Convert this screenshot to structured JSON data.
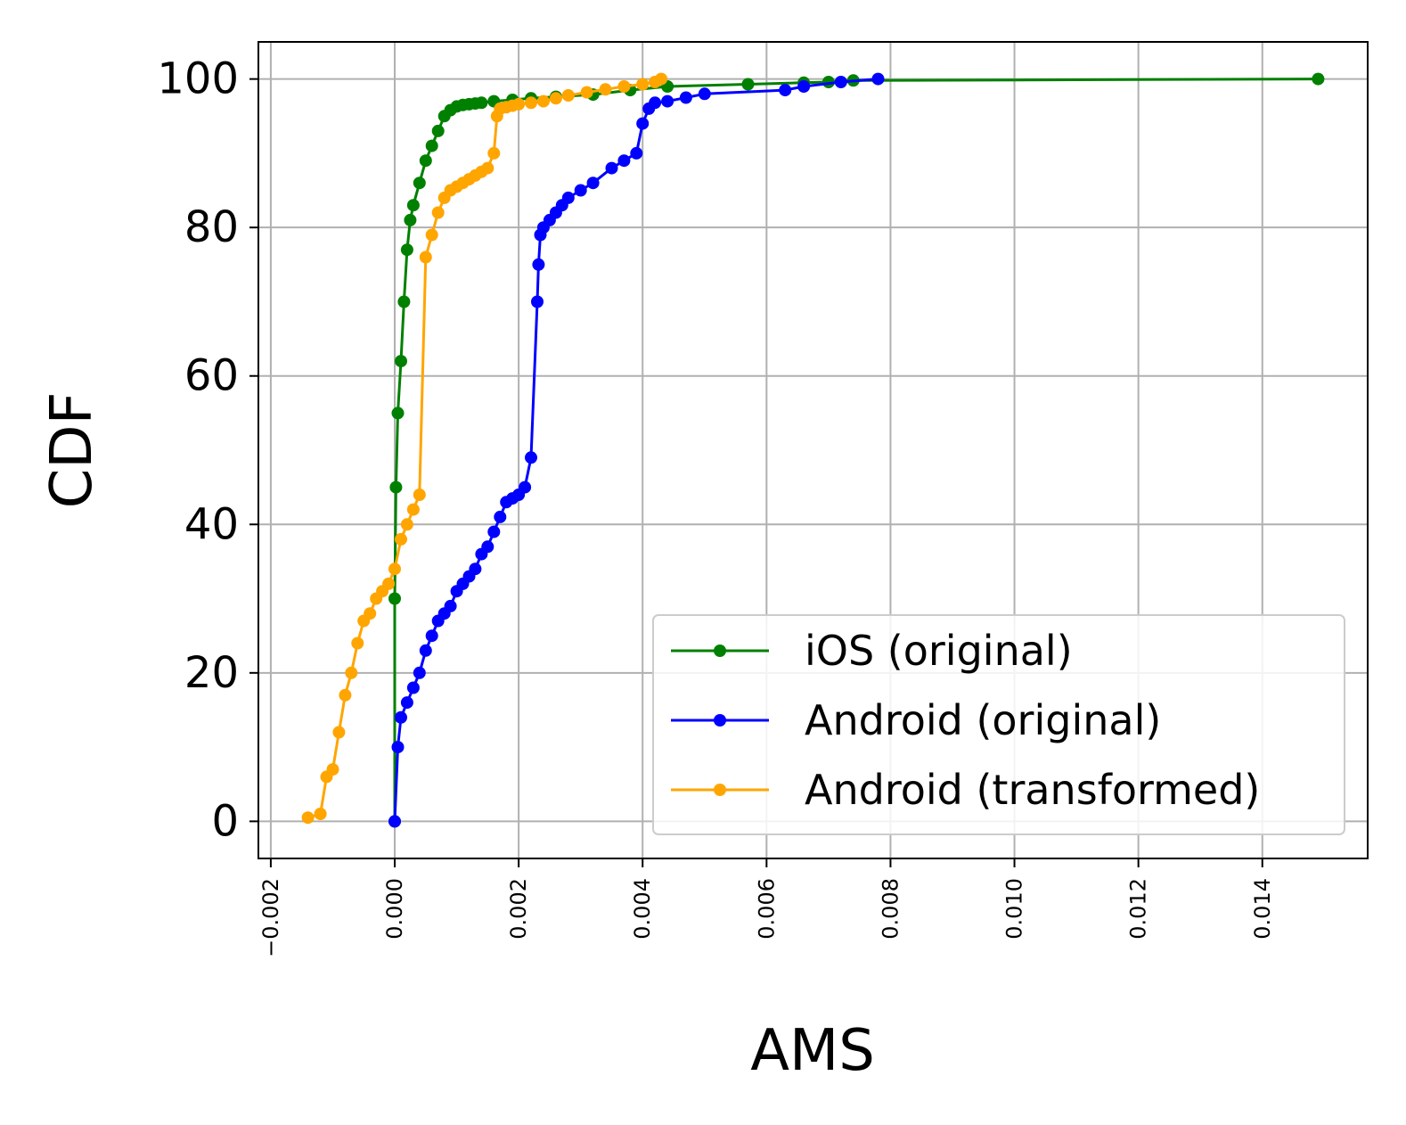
{
  "chart_data": {
    "type": "line",
    "title": "",
    "xlabel": "AMS",
    "ylabel": "CDF",
    "xlim": [
      -0.0022,
      0.0157
    ],
    "ylim": [
      -5,
      105
    ],
    "xticks": [
      -0.002,
      0.0,
      0.002,
      0.004,
      0.006,
      0.008,
      0.01,
      0.012,
      0.014
    ],
    "xtick_labels": [
      "−0.002",
      "0.000",
      "0.002",
      "0.004",
      "0.006",
      "0.008",
      "0.010",
      "0.012",
      "0.014"
    ],
    "yticks": [
      0,
      20,
      40,
      60,
      80,
      100
    ],
    "ytick_labels": [
      "0",
      "20",
      "40",
      "60",
      "80",
      "100"
    ],
    "grid": true,
    "legend_position": "lower-right",
    "series": [
      {
        "name": "iOS (original)",
        "color": "#008000",
        "x": [
          0.0,
          0.0,
          2e-05,
          5e-05,
          0.0001,
          0.00015,
          0.0002,
          0.00025,
          0.0003,
          0.0004,
          0.0005,
          0.0006,
          0.0007,
          0.0008,
          0.0009,
          0.001,
          0.0011,
          0.0012,
          0.0013,
          0.0014,
          0.0016,
          0.0019,
          0.0022,
          0.0026,
          0.0032,
          0.0038,
          0.0044,
          0.0057,
          0.0066,
          0.007,
          0.0074,
          0.0149
        ],
        "y": [
          0,
          30,
          45,
          55,
          62,
          70,
          77,
          81,
          83,
          86,
          89,
          91,
          93,
          95,
          95.8,
          96.3,
          96.5,
          96.6,
          96.7,
          96.8,
          97.0,
          97.2,
          97.4,
          97.6,
          97.9,
          98.5,
          99.0,
          99.3,
          99.5,
          99.6,
          99.8,
          100
        ]
      },
      {
        "name": "Android (original)",
        "color": "#0000ff",
        "x": [
          0.0,
          5e-05,
          0.0001,
          0.0002,
          0.0003,
          0.0004,
          0.0005,
          0.0006,
          0.0007,
          0.0008,
          0.0009,
          0.001,
          0.0011,
          0.0012,
          0.0013,
          0.0014,
          0.0015,
          0.0016,
          0.0017,
          0.0018,
          0.0019,
          0.002,
          0.0021,
          0.0022,
          0.0023,
          0.00232,
          0.00235,
          0.0024,
          0.0025,
          0.0026,
          0.0027,
          0.0028,
          0.003,
          0.0032,
          0.0035,
          0.0037,
          0.0039,
          0.004,
          0.0041,
          0.0042,
          0.0044,
          0.0047,
          0.005,
          0.0063,
          0.0066,
          0.0072,
          0.0078
        ],
        "y": [
          0,
          10,
          14,
          16,
          18,
          20,
          23,
          25,
          27,
          28,
          29,
          31,
          32,
          33,
          34,
          36,
          37,
          39,
          41,
          43,
          43.5,
          44,
          45,
          49,
          70,
          75,
          79,
          80,
          81,
          82,
          83,
          84,
          85,
          86,
          88,
          89,
          90,
          94,
          96,
          96.8,
          97,
          97.5,
          98,
          98.5,
          99,
          99.6,
          100
        ]
      },
      {
        "name": "Android (transformed)",
        "color": "#ffa500",
        "x": [
          -0.0014,
          -0.0012,
          -0.0011,
          -0.001,
          -0.0009,
          -0.0008,
          -0.0007,
          -0.0006,
          -0.0005,
          -0.0004,
          -0.0003,
          -0.0002,
          -0.0001,
          0.0,
          0.0001,
          0.0002,
          0.0003,
          0.0004,
          0.0005,
          0.0006,
          0.0007,
          0.0008,
          0.0009,
          0.001,
          0.0011,
          0.0012,
          0.0013,
          0.0014,
          0.0015,
          0.0016,
          0.00165,
          0.0017,
          0.0018,
          0.0019,
          0.002,
          0.0022,
          0.0024,
          0.0026,
          0.0028,
          0.0031,
          0.0034,
          0.0037,
          0.004,
          0.0042,
          0.0043
        ],
        "y": [
          0.5,
          1,
          6,
          7,
          12,
          17,
          20,
          24,
          27,
          28,
          30,
          31,
          32,
          34,
          38,
          40,
          42,
          44,
          76,
          79,
          82,
          84,
          85,
          85.5,
          86,
          86.5,
          87,
          87.5,
          88,
          90,
          95,
          96,
          96.2,
          96.4,
          96.6,
          96.8,
          97,
          97.4,
          97.8,
          98.2,
          98.6,
          99,
          99.3,
          99.6,
          100
        ]
      }
    ]
  }
}
